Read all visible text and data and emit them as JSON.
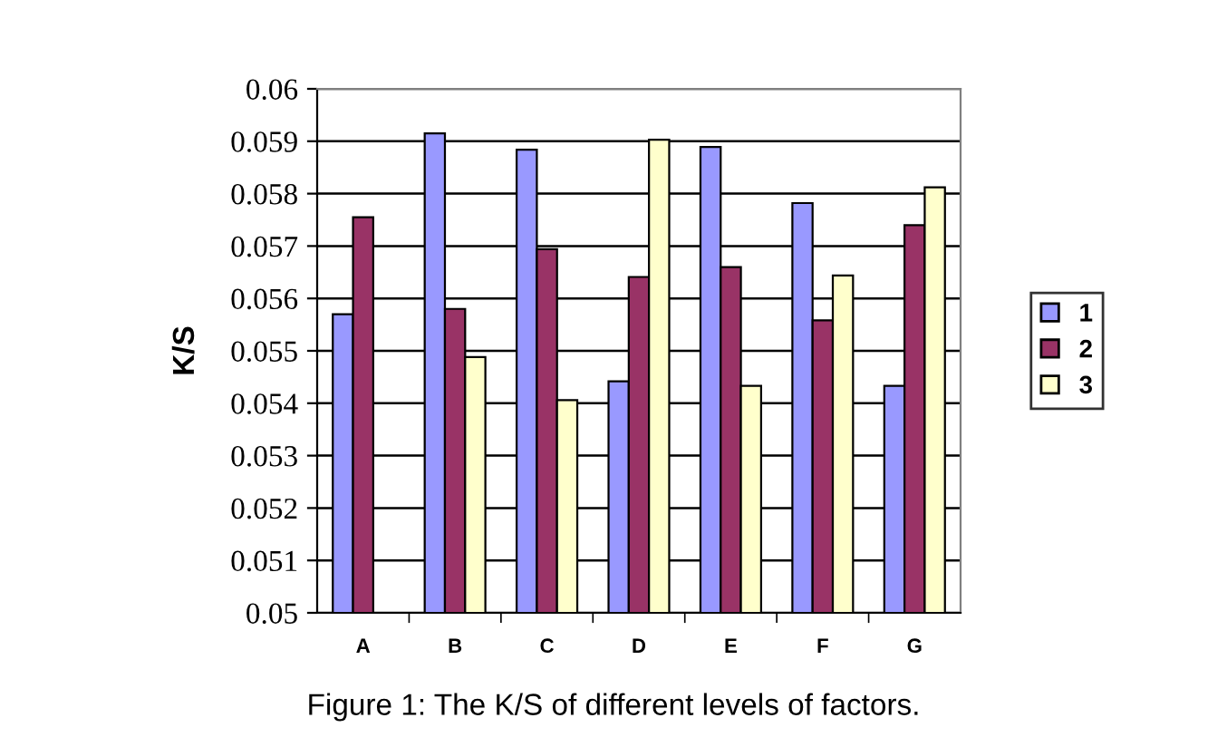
{
  "chart_data": {
    "type": "bar",
    "ylabel": "K/S",
    "categories": [
      "A",
      "B",
      "C",
      "D",
      "E",
      "F",
      "G"
    ],
    "series": [
      {
        "name": "1",
        "color": "#9999ff",
        "values": [
          0.0557,
          0.05915,
          0.05884,
          0.05442,
          0.05889,
          0.05782,
          0.05433
        ]
      },
      {
        "name": "2",
        "color": "#993366",
        "values": [
          0.05755,
          0.0558,
          0.05694,
          0.05641,
          0.0566,
          0.05558,
          0.0574
        ]
      },
      {
        "name": "3",
        "color": "#ffffcc",
        "values": [
          null,
          0.05488,
          0.05406,
          0.05903,
          0.05433,
          0.05644,
          0.05812
        ]
      }
    ],
    "ylim": [
      0.05,
      0.06
    ],
    "yticks": [
      0.05,
      0.051,
      0.052,
      0.053,
      0.054,
      0.055,
      0.056,
      0.057,
      0.058,
      0.059,
      0.06
    ],
    "grid": "y",
    "legend": "right",
    "annotations": [
      "Figure 1: The K/S of different levels of factors."
    ]
  }
}
